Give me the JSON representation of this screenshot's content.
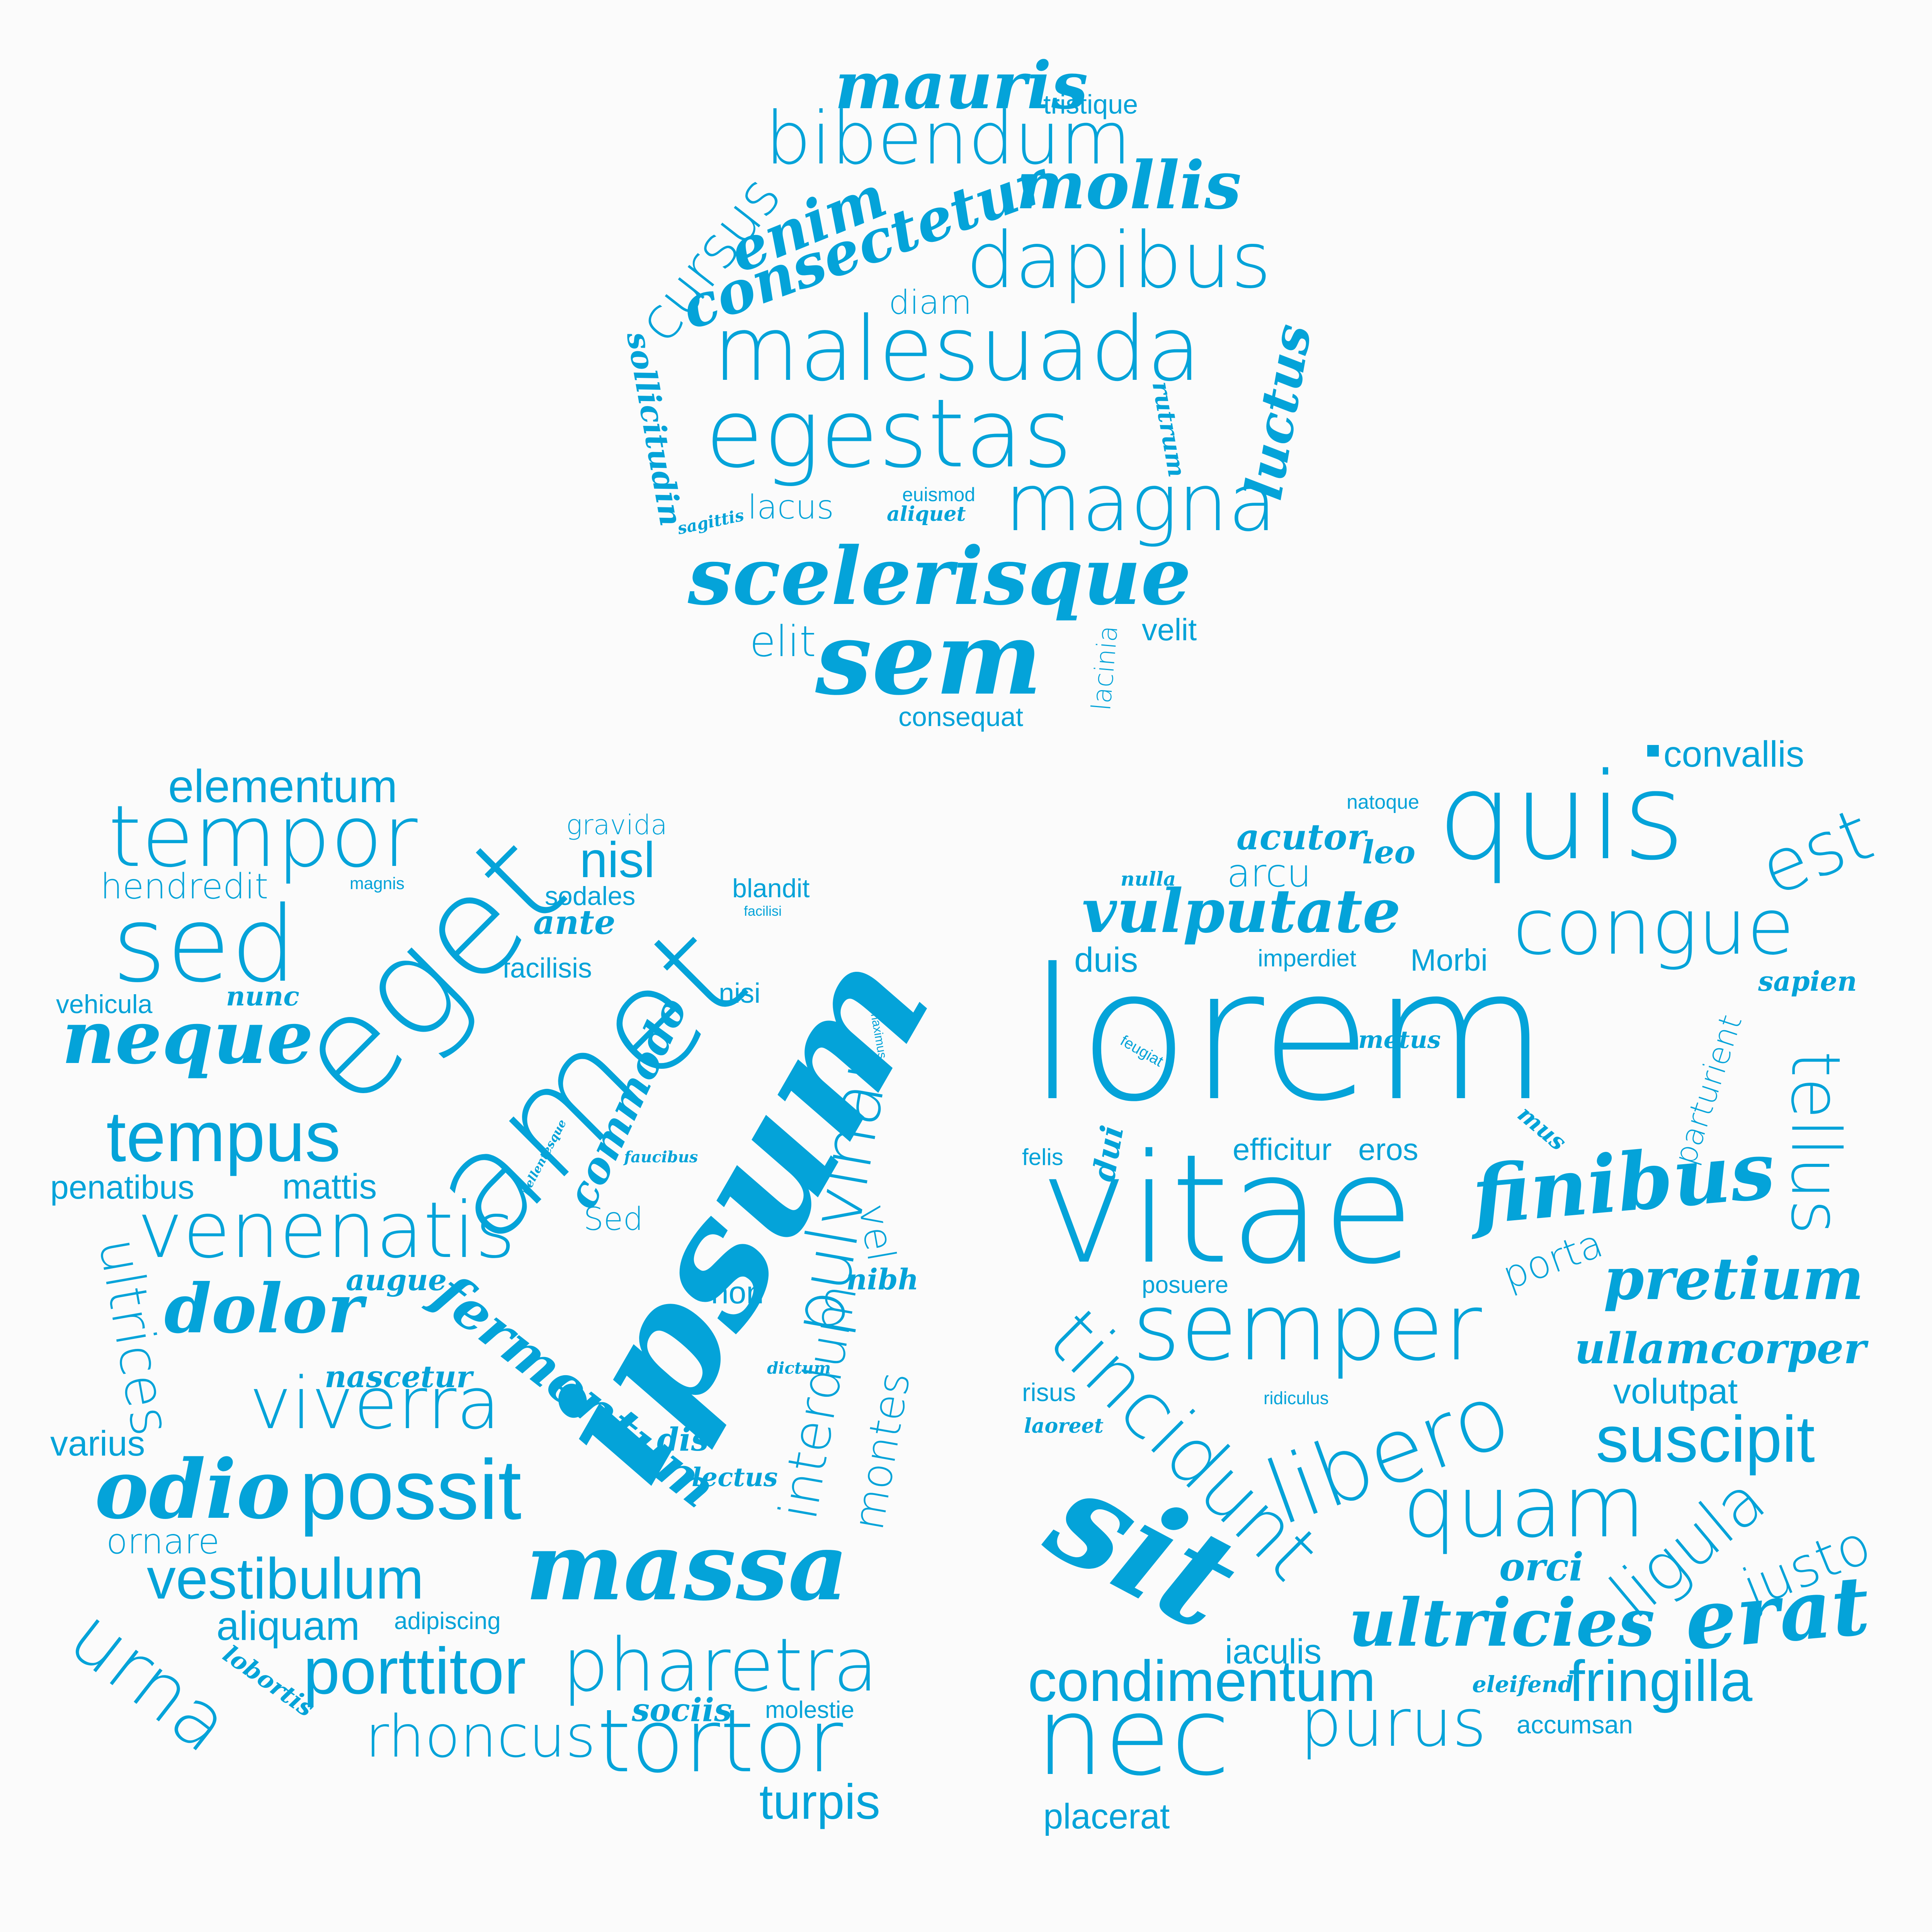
{
  "theme": {
    "text_color": "#04a3d9",
    "background": "#fbfbfb"
  },
  "clouds": [
    {
      "shape": "circle",
      "words": [
        "mauris",
        "tristique",
        "bibendum",
        "mollis",
        "cursus",
        "enim",
        "consectetur",
        "dapibus",
        "diam",
        "malesuada",
        "sollicitudin",
        "rutrum",
        "luctus",
        "egestas",
        "magna",
        "lacus",
        "euismod",
        "aliquet",
        "sagittis",
        "scelerisque",
        "elit",
        "sem",
        "velit",
        "lacinia",
        "consequat"
      ]
    },
    {
      "shape": "square",
      "words": [
        "elementum",
        "gravida",
        "tempor",
        "eget",
        "nisl",
        "hendredit",
        "magnis",
        "blandit",
        "sodales",
        "facilisi",
        "sed",
        "ante",
        "facilisis",
        "amet",
        "vehicula",
        "nunc",
        "nisi",
        "maximus",
        "neque",
        "commodo",
        "tempus",
        "pellentesque",
        "faucibus",
        "ipsum",
        "pulvinar",
        "penatibus",
        "mattis",
        "venenatis",
        "Sed",
        "vel",
        "ultrices",
        "augue",
        "nibh",
        "non",
        "dolor",
        "fermentum",
        "nascetur",
        "dictum",
        "viverra",
        "varius",
        "interdum",
        "dis",
        "montes",
        "odio",
        "possit",
        "lectus",
        "ornare",
        "vestibulum",
        "massa",
        "urna",
        "aliquam",
        "adipiscing",
        "lobortis",
        "porttitor",
        "pharetra",
        "sociis",
        "molestie",
        "rhoncus",
        "tortor",
        "turpis"
      ]
    },
    {
      "shape": "square",
      "words": [
        "convallis",
        "natoque",
        "quis",
        "acutor",
        "leo",
        "est",
        "nulla",
        "arcu",
        "vulputate",
        "congue",
        "duis",
        "imperdiet",
        "Morbi",
        "sapien",
        "lorem",
        "metus",
        "feugiat",
        "parturient",
        "tellus",
        "mus",
        "felis",
        "dui",
        "efficitur",
        "eros",
        "finibus",
        "vitae",
        "porta",
        "pretium",
        "posuere",
        "semper",
        "tincidunt",
        "ullamcorper",
        "risus",
        "ridiculus",
        "volutpat",
        "laoreet",
        "libero",
        "suscipit",
        "sit",
        "quam",
        "ligula",
        "justo",
        "orci",
        "erat",
        "ultricies",
        "iaculis",
        "eleifend",
        "condimentum",
        "fringilla",
        "accumsan",
        "nec",
        "purus",
        "placerat"
      ]
    }
  ]
}
